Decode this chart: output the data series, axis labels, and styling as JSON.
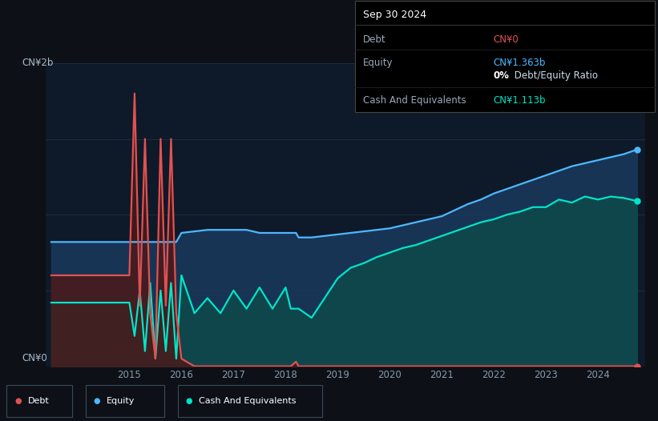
{
  "bg_color": "#0d1117",
  "plot_bg_color": "#0e1929",
  "debt_color": "#e05252",
  "equity_color": "#4db8ff",
  "cash_color": "#00e5c8",
  "equity_fill": "#1a3a5c",
  "cash_fill": "#0d4a4a",
  "debt_fill": "#4a1a1a",
  "tooltip_bg": "#000000",
  "tooltip_border": "#333333",
  "ylabel_top": "CN¥2b",
  "ylabel_bottom": "CN¥0",
  "tooltip_title": "Sep 30 2024",
  "tooltip_debt_label": "Debt",
  "tooltip_debt_value": "CN¥0",
  "tooltip_equity_label": "Equity",
  "tooltip_equity_value": "CN¥1.363b",
  "tooltip_ratio": " Debt/Equity Ratio",
  "tooltip_ratio_bold": "0%",
  "tooltip_cash_label": "Cash And Equivalents",
  "tooltip_cash_value": "CN¥1.113b",
  "legend_items": [
    "Debt",
    "Equity",
    "Cash And Equivalents"
  ],
  "x_ticks": [
    2015,
    2016,
    2017,
    2018,
    2019,
    2020,
    2021,
    2022,
    2023,
    2024
  ],
  "ylim": [
    0,
    2.0
  ],
  "years": [
    2013.5,
    2013.75,
    2014.0,
    2014.25,
    2014.5,
    2014.75,
    2015.0,
    2015.1,
    2015.2,
    2015.3,
    2015.4,
    2015.5,
    2015.6,
    2015.7,
    2015.8,
    2015.9,
    2016.0,
    2016.25,
    2016.5,
    2016.75,
    2017.0,
    2017.25,
    2017.5,
    2017.75,
    2018.0,
    2018.1,
    2018.2,
    2018.25,
    2018.5,
    2018.75,
    2019.0,
    2019.25,
    2019.5,
    2019.75,
    2020.0,
    2020.25,
    2020.5,
    2020.75,
    2021.0,
    2021.25,
    2021.5,
    2021.75,
    2022.0,
    2022.25,
    2022.5,
    2022.75,
    2023.0,
    2023.25,
    2023.5,
    2023.75,
    2024.0,
    2024.25,
    2024.5,
    2024.75
  ],
  "debt": [
    0.6,
    0.6,
    0.6,
    0.6,
    0.6,
    0.6,
    0.6,
    1.8,
    0.4,
    1.5,
    0.35,
    0.05,
    1.5,
    0.4,
    1.5,
    0.35,
    0.05,
    0.0,
    0.0,
    0.0,
    0.0,
    0.0,
    0.0,
    0.0,
    0.0,
    0.0,
    0.03,
    0.0,
    0.0,
    0.0,
    0.0,
    0.0,
    0.0,
    0.0,
    0.0,
    0.0,
    0.0,
    0.0,
    0.0,
    0.0,
    0.0,
    0.0,
    0.0,
    0.0,
    0.0,
    0.0,
    0.0,
    0.0,
    0.0,
    0.0,
    0.0,
    0.0,
    0.0,
    0.0
  ],
  "equity": [
    0.82,
    0.82,
    0.82,
    0.82,
    0.82,
    0.82,
    0.82,
    0.82,
    0.82,
    0.82,
    0.82,
    0.82,
    0.82,
    0.82,
    0.82,
    0.82,
    0.88,
    0.89,
    0.9,
    0.9,
    0.9,
    0.9,
    0.88,
    0.88,
    0.88,
    0.88,
    0.88,
    0.85,
    0.85,
    0.86,
    0.87,
    0.88,
    0.89,
    0.9,
    0.91,
    0.93,
    0.95,
    0.97,
    0.99,
    1.03,
    1.07,
    1.1,
    1.14,
    1.17,
    1.2,
    1.23,
    1.26,
    1.29,
    1.32,
    1.34,
    1.36,
    1.38,
    1.4,
    1.43
  ],
  "cash": [
    0.42,
    0.42,
    0.42,
    0.42,
    0.42,
    0.42,
    0.42,
    0.2,
    0.5,
    0.1,
    0.55,
    0.05,
    0.5,
    0.1,
    0.55,
    0.05,
    0.6,
    0.35,
    0.45,
    0.35,
    0.5,
    0.38,
    0.52,
    0.38,
    0.52,
    0.38,
    0.38,
    0.38,
    0.32,
    0.45,
    0.58,
    0.65,
    0.68,
    0.72,
    0.75,
    0.78,
    0.8,
    0.83,
    0.86,
    0.89,
    0.92,
    0.95,
    0.97,
    1.0,
    1.02,
    1.05,
    1.05,
    1.1,
    1.08,
    1.12,
    1.1,
    1.12,
    1.11,
    1.09
  ]
}
